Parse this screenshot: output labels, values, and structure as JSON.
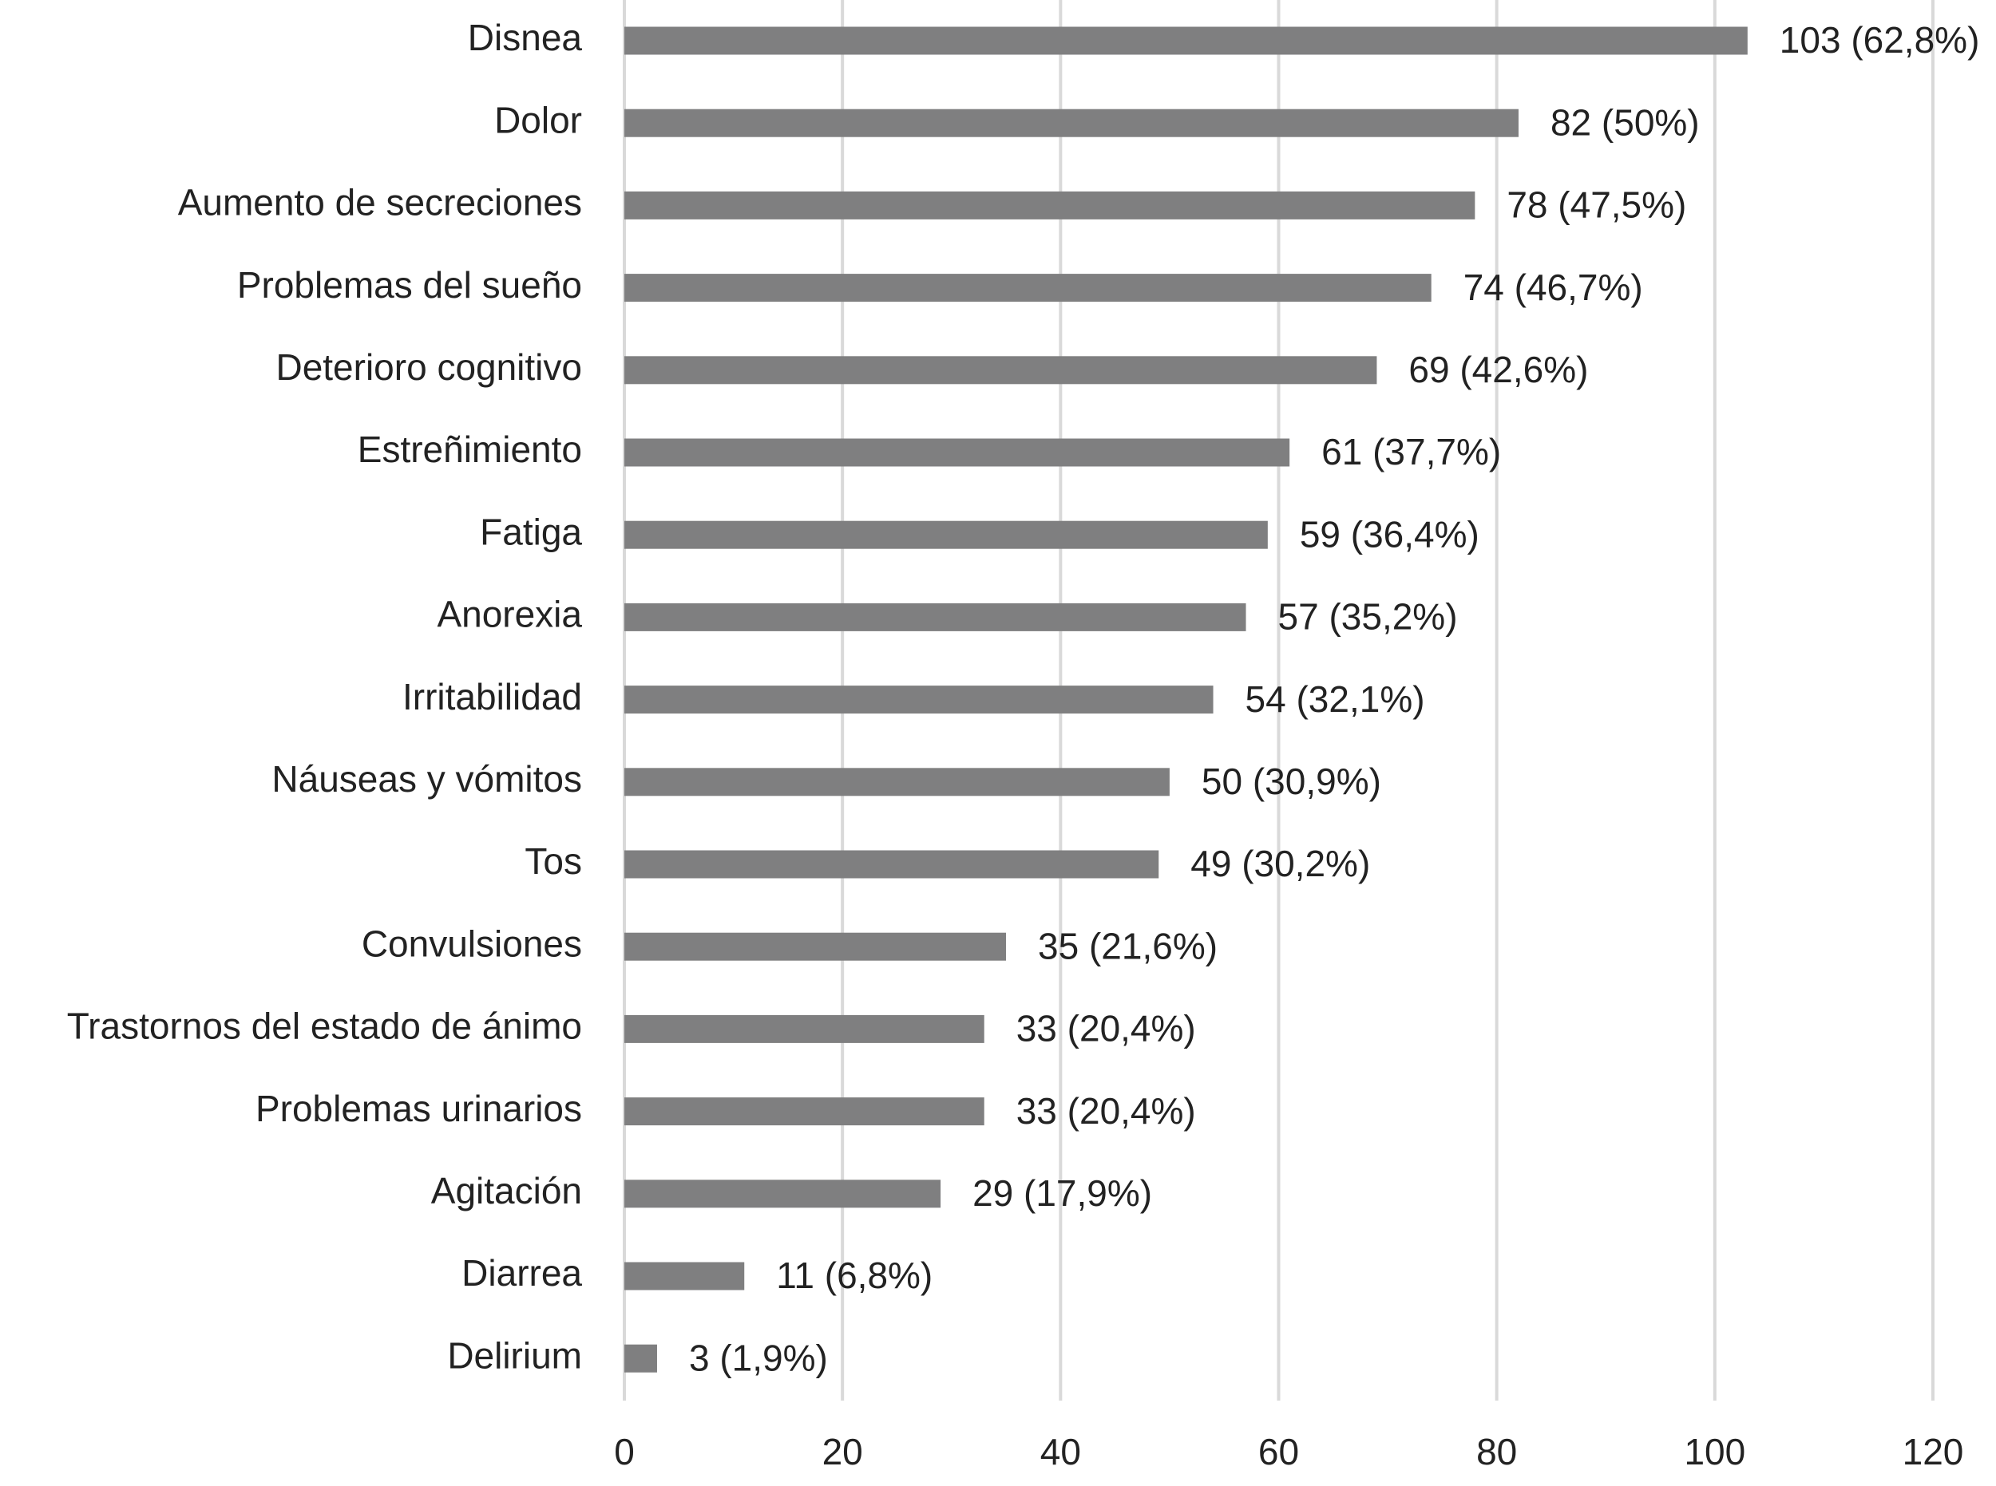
{
  "chart_data": {
    "type": "hbar",
    "categories": [
      "Disnea",
      "Dolor",
      "Aumento de secreciones",
      "Problemas del sueño",
      "Deterioro cognitivo",
      "Estreñimiento",
      "Fatiga",
      "Anorexia",
      "Irritabilidad",
      "Náuseas y vómitos",
      "Tos",
      "Convulsiones",
      "Trastornos del estado de ánimo",
      "Problemas urinarios",
      "Agitación",
      "Diarrea",
      "Delirium"
    ],
    "values": [
      103,
      82,
      78,
      74,
      69,
      61,
      59,
      57,
      54,
      50,
      49,
      35,
      33,
      33,
      29,
      11,
      3
    ],
    "value_labels": [
      "103 (62,8%)",
      "82 (50%)",
      "78 (47,5%)",
      "74 (46,7%)",
      "69 (42,6%)",
      "61 (37,7%)",
      "59 (36,4%)",
      "57 (35,2%)",
      "54 (32,1%)",
      "50 (30,9%)",
      "49 (30,2%)",
      "35 (21,6%)",
      "33 (20,4%)",
      "33 (20,4%)",
      "29 (17,9%)",
      "11 (6,8%)",
      "3 (1,9%)"
    ],
    "color": "#7f7f80",
    "xlim": [
      0,
      120
    ],
    "xticks": [
      0,
      20,
      40,
      60,
      80,
      100,
      120
    ],
    "grid": true
  }
}
